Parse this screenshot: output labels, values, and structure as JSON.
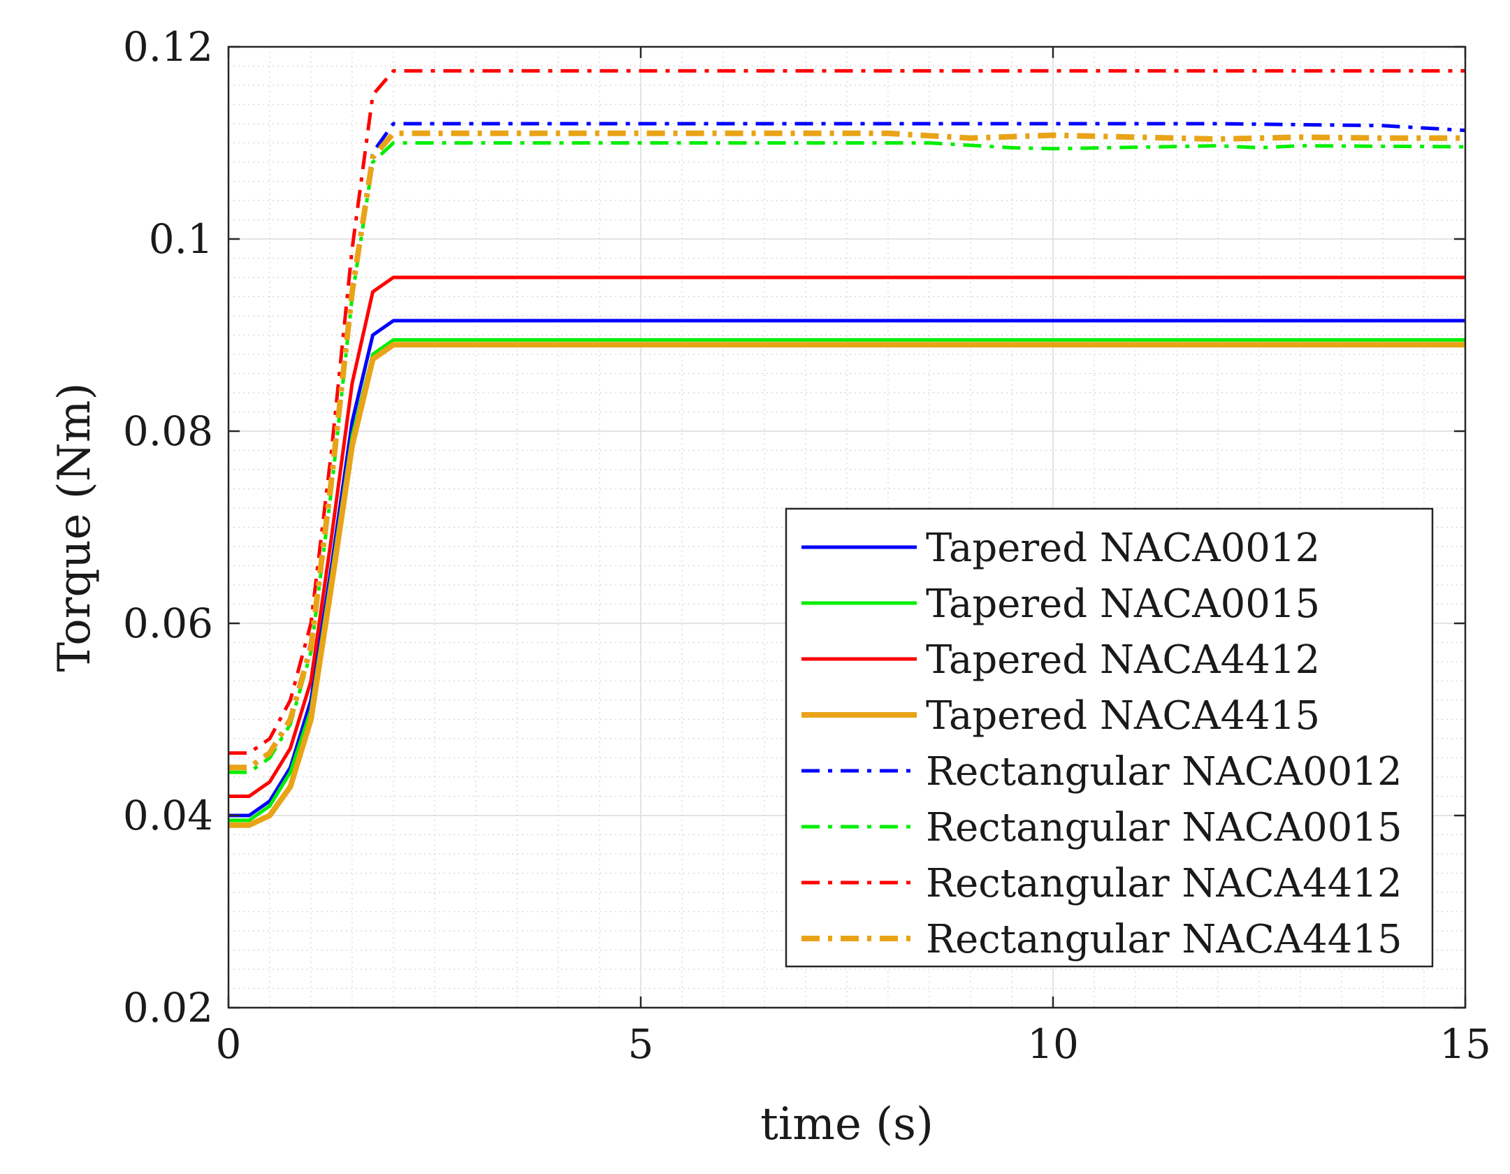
{
  "chart_data": {
    "type": "line",
    "xlabel": "time (s)",
    "ylabel": "Torque (Nm)",
    "xlim": [
      0,
      15
    ],
    "ylim": [
      0.02,
      0.12
    ],
    "x_ticks": [
      0,
      5,
      10,
      15
    ],
    "x_tick_labels": [
      "0",
      "5",
      "10",
      "15"
    ],
    "y_ticks": [
      0.02,
      0.04,
      0.06,
      0.08,
      0.1,
      0.12
    ],
    "y_tick_labels": [
      "0.02",
      "0.04",
      "0.06",
      "0.08",
      "0.1",
      "0.12"
    ],
    "grid": "major and minor (dotted)",
    "legend_position": "bottom-right",
    "series": [
      {
        "name": "Tapered NACA0012",
        "color": "#0000ff",
        "style": "solid",
        "x": [
          0,
          0.25,
          0.5,
          0.75,
          1.0,
          1.25,
          1.5,
          1.75,
          2.0,
          15
        ],
        "y": [
          0.04,
          0.04,
          0.0415,
          0.045,
          0.052,
          0.066,
          0.081,
          0.09,
          0.0915,
          0.0915
        ]
      },
      {
        "name": "Tapered NACA0015",
        "color": "#00ee00",
        "style": "solid",
        "x": [
          0,
          0.25,
          0.5,
          0.75,
          1.0,
          1.25,
          1.5,
          1.75,
          2.0,
          15
        ],
        "y": [
          0.0395,
          0.0395,
          0.041,
          0.0445,
          0.051,
          0.065,
          0.0795,
          0.088,
          0.0895,
          0.0895
        ]
      },
      {
        "name": "Tapered NACA4412",
        "color": "#ff0000",
        "style": "solid",
        "x": [
          0,
          0.25,
          0.5,
          0.75,
          1.0,
          1.25,
          1.5,
          1.75,
          2.0,
          15
        ],
        "y": [
          0.042,
          0.042,
          0.0435,
          0.047,
          0.054,
          0.069,
          0.085,
          0.0945,
          0.096,
          0.096
        ]
      },
      {
        "name": "Tapered NACA4415",
        "color": "#e8a317",
        "style": "solid",
        "x": [
          0,
          0.25,
          0.5,
          0.75,
          1.0,
          1.25,
          1.5,
          1.75,
          2.0,
          15
        ],
        "y": [
          0.039,
          0.039,
          0.04,
          0.043,
          0.05,
          0.064,
          0.0785,
          0.0875,
          0.089,
          0.089
        ]
      },
      {
        "name": "Rectangular NACA0012",
        "color": "#0000ff",
        "style": "dashdot",
        "x": [
          0,
          0.25,
          0.5,
          0.75,
          1.0,
          1.25,
          1.5,
          1.75,
          2.0,
          8,
          12,
          14,
          15
        ],
        "y": [
          0.045,
          0.045,
          0.0465,
          0.05,
          0.058,
          0.075,
          0.095,
          0.109,
          0.112,
          0.112,
          0.112,
          0.1118,
          0.1113
        ]
      },
      {
        "name": "Rectangular NACA0015",
        "color": "#00ee00",
        "style": "dashdot",
        "x": [
          0,
          0.25,
          0.5,
          0.75,
          1.0,
          1.25,
          1.5,
          1.75,
          2.0,
          8.5,
          9.5,
          10,
          12,
          12.5,
          13,
          15
        ],
        "y": [
          0.0445,
          0.0445,
          0.046,
          0.0495,
          0.057,
          0.074,
          0.094,
          0.108,
          0.11,
          0.11,
          0.1095,
          0.1094,
          0.1097,
          0.1095,
          0.1097,
          0.1096
        ]
      },
      {
        "name": "Rectangular NACA4412",
        "color": "#ff0000",
        "style": "dashdot",
        "x": [
          0,
          0.25,
          0.5,
          0.75,
          1.0,
          1.25,
          1.5,
          1.75,
          2.0,
          15
        ],
        "y": [
          0.0465,
          0.0465,
          0.048,
          0.052,
          0.06,
          0.078,
          0.099,
          0.115,
          0.1175,
          0.1175
        ]
      },
      {
        "name": "Rectangular NACA4415",
        "color": "#e8a317",
        "style": "dashdot",
        "x": [
          0,
          0.25,
          0.5,
          0.75,
          1.0,
          1.25,
          1.5,
          1.75,
          2.0,
          8,
          9,
          10,
          11,
          12,
          13,
          14,
          15
        ],
        "y": [
          0.045,
          0.045,
          0.0465,
          0.05,
          0.0575,
          0.075,
          0.0945,
          0.1085,
          0.111,
          0.111,
          0.1105,
          0.1108,
          0.1106,
          0.1104,
          0.1106,
          0.1105,
          0.1105
        ]
      }
    ]
  }
}
